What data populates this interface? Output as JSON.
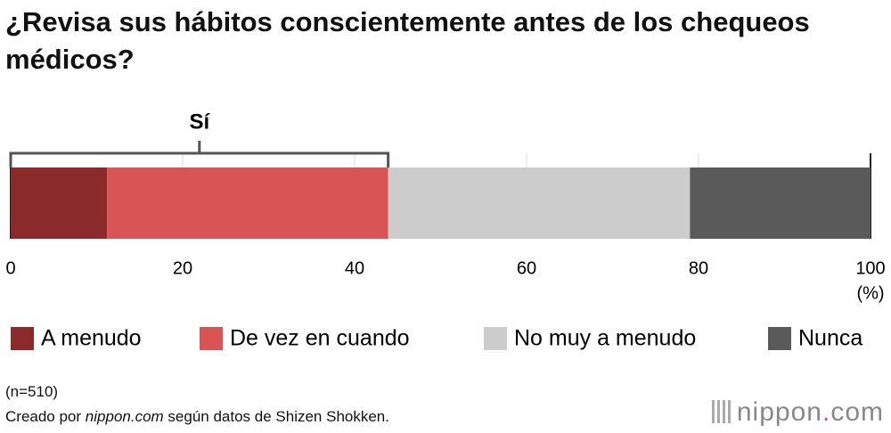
{
  "chart_data": {
    "type": "stacked-bar",
    "title": "¿Revisa sus hábitos conscientemente antes de los chequeos médicos?",
    "series": [
      {
        "name": "A menudo",
        "color": "#8b2a2a",
        "values": [
          11.2
        ]
      },
      {
        "name": "De vez en cuando",
        "color": "#d95555",
        "values": [
          32.7
        ]
      },
      {
        "name": "No muy a menudo",
        "color": "#cccccc",
        "values": [
          35.1
        ]
      },
      {
        "name": "Nunca",
        "color": "#5a5a5a",
        "values": [
          21.0
        ]
      }
    ],
    "xlim": [
      0,
      100
    ],
    "xticks": [
      0,
      20,
      40,
      60,
      80,
      100
    ],
    "grid": true,
    "unit_label": "(%)",
    "annotation": "Sí",
    "note": "(n=510)",
    "source": [
      "Creado por",
      "nippon.com",
      "según datos de Shizen Shokken."
    ]
  },
  "logo": [
    "nippon",
    ".",
    "com"
  ]
}
